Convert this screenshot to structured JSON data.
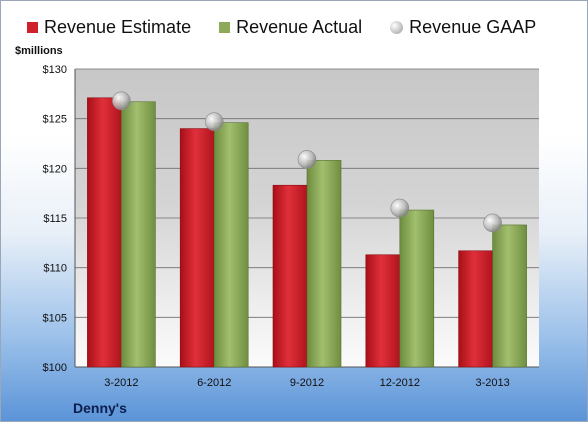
{
  "chart_data": {
    "type": "bar",
    "ylabel": "$millions",
    "ylim": [
      100,
      130
    ],
    "yticks": [
      "$100",
      "$105",
      "$110",
      "$115",
      "$120",
      "$125",
      "$130"
    ],
    "categories": [
      "3-2012",
      "6-2012",
      "9-2012",
      "12-2012",
      "3-2013"
    ],
    "series": [
      {
        "name": "Revenue Estimate",
        "type": "bar",
        "color": "#d0202a",
        "values": [
          127.1,
          124.0,
          118.3,
          111.3,
          111.7
        ]
      },
      {
        "name": "Revenue Actual",
        "type": "bar",
        "color": "#8caa5a",
        "values": [
          126.7,
          124.6,
          120.8,
          115.8,
          114.3
        ]
      },
      {
        "name": "Revenue GAAP",
        "type": "marker",
        "color": "#b8b8b8",
        "values": [
          126.8,
          124.7,
          120.9,
          116.0,
          114.5
        ]
      }
    ],
    "grid": true,
    "legend": "top"
  },
  "company": "Denny's"
}
